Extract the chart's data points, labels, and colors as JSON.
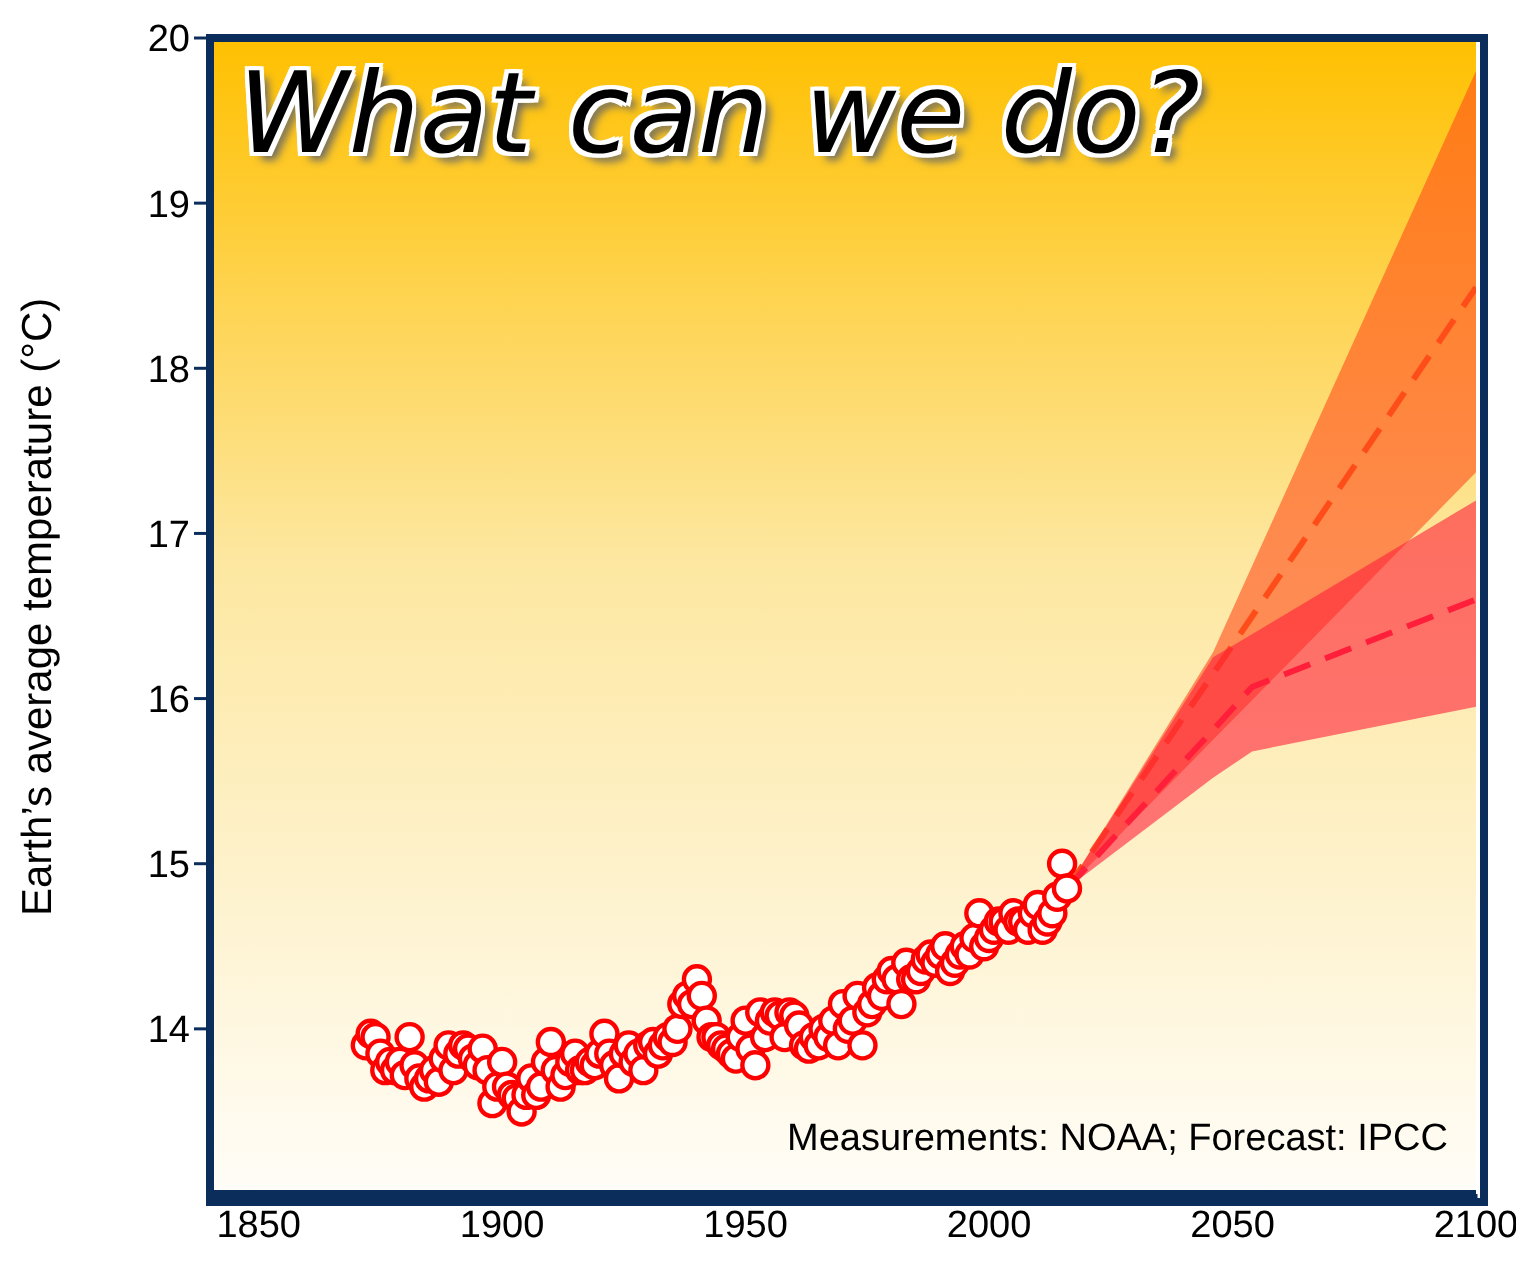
{
  "chart_data": {
    "type": "scatter",
    "title": "What can we do?",
    "ylabel": "Earth’s average temperature (°C)",
    "annotations": [
      "Measurements: NOAA; Forecast: IPCC"
    ],
    "xlim": [
      1840,
      2100
    ],
    "xticks": [
      1850,
      1900,
      1950,
      2000,
      2050,
      2100
    ],
    "ylim": [
      13,
      20
    ],
    "yticks": [
      14,
      15,
      16,
      17,
      18,
      19,
      20
    ],
    "grid": false,
    "legend": false,
    "series": [
      {
        "color": "#ff0000",
        "marker": "circle",
        "x": [
          1872,
          1873,
          1874,
          1875,
          1876,
          1877,
          1878,
          1879,
          1880,
          1881,
          1882,
          1883,
          1884,
          1885,
          1886,
          1887,
          1888,
          1889,
          1890,
          1891,
          1892,
          1893,
          1894,
          1895,
          1896,
          1897,
          1898,
          1899,
          1900,
          1901,
          1902,
          1903,
          1904,
          1905,
          1906,
          1907,
          1908,
          1909,
          1910,
          1911,
          1912,
          1913,
          1914,
          1915,
          1916,
          1917,
          1918,
          1919,
          1920,
          1921,
          1922,
          1923,
          1924,
          1925,
          1926,
          1927,
          1928,
          1929,
          1930,
          1931,
          1932,
          1933,
          1934,
          1935,
          1936,
          1937,
          1938,
          1939,
          1940,
          1941,
          1942,
          1943,
          1944,
          1945,
          1946,
          1947,
          1948,
          1949,
          1950,
          1951,
          1952,
          1953,
          1954,
          1955,
          1956,
          1957,
          1958,
          1959,
          1960,
          1961,
          1962,
          1963,
          1964,
          1965,
          1966,
          1967,
          1968,
          1969,
          1970,
          1971,
          1972,
          1973,
          1974,
          1975,
          1976,
          1977,
          1978,
          1979,
          1980,
          1981,
          1982,
          1983,
          1984,
          1985,
          1986,
          1987,
          1988,
          1989,
          1990,
          1991,
          1992,
          1993,
          1994,
          1995,
          1996,
          1997,
          1998,
          1999,
          2000,
          2001,
          2002,
          2003,
          2004,
          2005,
          2006,
          2007,
          2008,
          2009,
          2010,
          2011,
          2012,
          2013,
          2014,
          2015,
          2016
        ],
        "values": [
          13.9,
          13.97,
          13.95,
          13.85,
          13.75,
          13.8,
          13.75,
          13.8,
          13.72,
          13.95,
          13.78,
          13.7,
          13.65,
          13.7,
          13.75,
          13.68,
          13.82,
          13.9,
          13.75,
          13.85,
          13.9,
          13.88,
          13.82,
          13.78,
          13.88,
          13.75,
          13.55,
          13.65,
          13.8,
          13.65,
          13.6,
          13.58,
          13.5,
          13.6,
          13.7,
          13.6,
          13.65,
          13.8,
          13.92,
          13.75,
          13.65,
          13.72,
          13.8,
          13.85,
          13.75,
          13.75,
          13.8,
          13.78,
          13.85,
          13.97,
          13.85,
          13.78,
          13.7,
          13.85,
          13.9,
          13.8,
          13.85,
          13.75,
          13.9,
          13.92,
          13.85,
          13.9,
          13.95,
          13.92,
          14.0,
          14.15,
          14.2,
          14.15,
          14.3,
          14.2,
          14.05,
          13.95,
          13.95,
          13.9,
          13.88,
          13.85,
          13.82,
          13.95,
          14.05,
          13.88,
          13.78,
          14.1,
          13.95,
          14.05,
          14.1,
          14.08,
          13.95,
          14.1,
          14.08,
          14.02,
          13.9,
          13.88,
          13.95,
          13.9,
          14.0,
          13.95,
          14.05,
          13.9,
          14.15,
          14.0,
          14.05,
          14.2,
          13.9,
          14.1,
          14.15,
          14.25,
          14.2,
          14.3,
          14.35,
          14.3,
          14.15,
          14.4,
          14.3,
          14.3,
          14.35,
          14.42,
          14.45,
          14.4,
          14.45,
          14.5,
          14.35,
          14.4,
          14.45,
          14.5,
          14.45,
          14.55,
          14.7,
          14.5,
          14.55,
          14.6,
          14.65,
          14.65,
          14.6,
          14.7,
          14.65,
          14.65,
          14.6,
          14.7,
          14.75,
          14.6,
          14.65,
          14.7,
          14.8,
          15.0,
          14.85
        ]
      },
      {
        "type": "line",
        "color": "#ff4d1a",
        "line_style": "dashed",
        "x": [
          2016,
          2046,
          2100
        ],
        "values": [
          14.85,
          16.15,
          18.49
        ],
        "lower": [
          14.85,
          15.75,
          17.37
        ],
        "upper": [
          14.85,
          16.28,
          19.8
        ]
      },
      {
        "type": "line",
        "color": "#ff1f3a",
        "line_style": "dashed",
        "x": [
          2016,
          2046,
          2054,
          2100
        ],
        "values": [
          14.85,
          15.81,
          16.07,
          16.6
        ],
        "lower": [
          14.85,
          15.52,
          15.68,
          15.95
        ],
        "upper": [
          14.85,
          16.25,
          16.39,
          17.2
        ]
      }
    ]
  }
}
